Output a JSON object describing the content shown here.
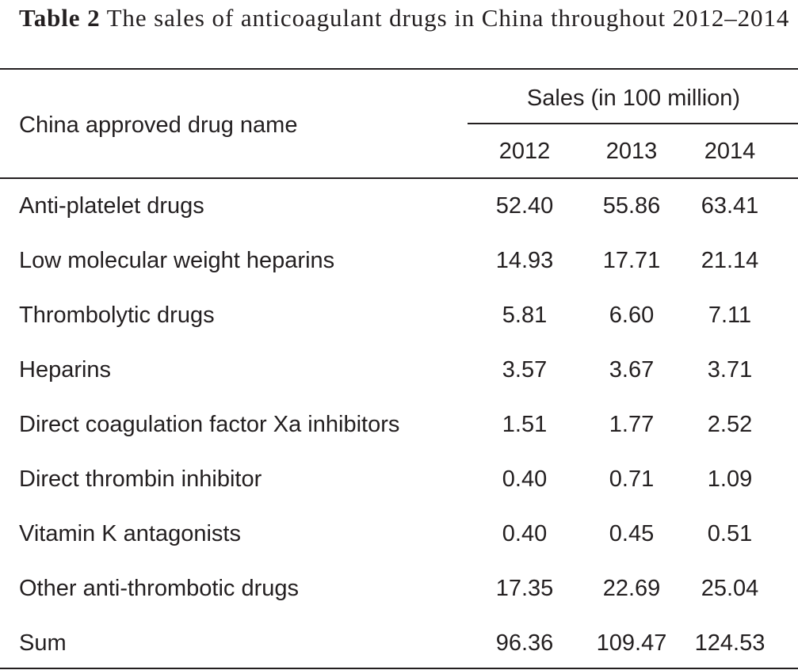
{
  "caption": {
    "label": "Table 2",
    "text": "The sales of anticoagulant drugs in China throughout 2012–2014"
  },
  "table": {
    "row_header": "China approved drug name",
    "group_header": "Sales (in 100 million)",
    "years": [
      "2012",
      "2013",
      "2014"
    ],
    "rows": [
      {
        "name": "Anti-platelet drugs",
        "values": [
          "52.40",
          "55.86",
          "63.41"
        ]
      },
      {
        "name": "Low molecular weight heparins",
        "values": [
          "14.93",
          "17.71",
          "21.14"
        ]
      },
      {
        "name": "Thrombolytic drugs",
        "values": [
          "5.81",
          "6.60",
          "7.11"
        ]
      },
      {
        "name": "Heparins",
        "values": [
          "3.57",
          "3.67",
          "3.71"
        ]
      },
      {
        "name": "Direct coagulation factor Xa inhibitors",
        "values": [
          "1.51",
          "1.77",
          "2.52"
        ]
      },
      {
        "name": "Direct thrombin inhibitor",
        "values": [
          "0.40",
          "0.71",
          "1.09"
        ]
      },
      {
        "name": "Vitamin K antagonists",
        "values": [
          "0.40",
          "0.45",
          "0.51"
        ]
      },
      {
        "name": "Other anti-thrombotic drugs",
        "values": [
          "17.35",
          "22.69",
          "25.04"
        ]
      },
      {
        "name": "Sum",
        "values": [
          "96.36",
          "109.47",
          "124.53"
        ]
      }
    ]
  }
}
